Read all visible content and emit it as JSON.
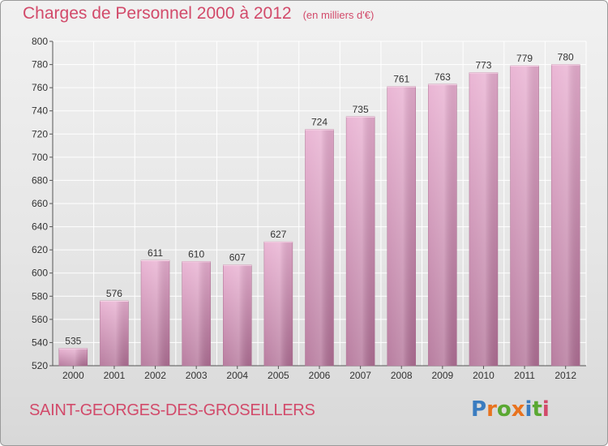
{
  "header": {
    "title": "Charges de Personnel 2000 à 2012",
    "unit": "(en milliers d'€)"
  },
  "footer": {
    "city": "SAINT-GEORGES-DES-GROSEILLERS",
    "logo": "Proxiti",
    "logo_colors": [
      "#3a7cc0",
      "#e8731f",
      "#5aa832",
      "#e8731f",
      "#3a7cc0",
      "#5aa832",
      "#d24a6a"
    ]
  },
  "colors": {
    "title": "#d24a6a",
    "bar_light": "#e8aed0",
    "bar_dark": "#b06f95",
    "grid": "#ffffff",
    "text": "#333333"
  },
  "chart_data": {
    "type": "bar",
    "categories": [
      "2000",
      "2001",
      "2002",
      "2003",
      "2004",
      "2005",
      "2006",
      "2007",
      "2008",
      "2009",
      "2010",
      "2011",
      "2012"
    ],
    "values": [
      535,
      576,
      611,
      610,
      607,
      627,
      724,
      735,
      761,
      763,
      773,
      779,
      780
    ],
    "ylim": [
      520,
      800
    ],
    "yticks": [
      520,
      540,
      560,
      580,
      600,
      620,
      640,
      660,
      680,
      700,
      720,
      740,
      760,
      780,
      800
    ],
    "grid": true,
    "data_labels": true
  }
}
